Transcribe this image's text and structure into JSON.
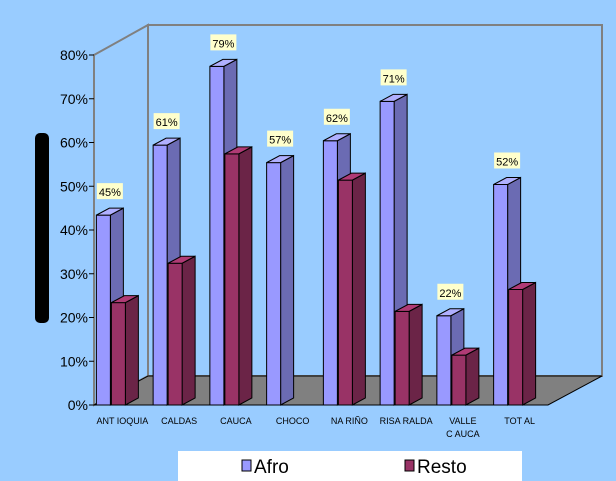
{
  "chart_data": {
    "type": "bar",
    "categories": [
      "ANT IOQUIA",
      "CALDAS",
      "CAUCA",
      "CHOCO",
      "NA RIÑO",
      "RISA RALDA",
      "VALLE C AUCA",
      "TOT AL"
    ],
    "category_lines": [
      [
        "ANT IOQUIA"
      ],
      [
        "CALDAS"
      ],
      [
        "CAUCA"
      ],
      [
        "CHOCO"
      ],
      [
        "NA RIÑO"
      ],
      [
        "RISA RALDA"
      ],
      [
        "VALLE",
        "C AUCA"
      ],
      [
        "TOT AL"
      ]
    ],
    "series": [
      {
        "name": "Afro",
        "values": [
          45,
          61,
          79,
          57,
          62,
          71,
          22,
          52
        ],
        "color": "#9999ff",
        "labels": [
          "45%",
          "61%",
          "79%",
          "57%",
          "62%",
          "71%",
          "22%",
          "52%"
        ]
      },
      {
        "name": "Resto",
        "values": [
          25,
          34,
          59,
          null,
          53,
          23,
          13,
          28
        ],
        "color": "#993366"
      }
    ],
    "yticks": [
      "0%",
      "10%",
      "20%",
      "30%",
      "40%",
      "50%",
      "60%",
      "70%",
      "80%"
    ],
    "ylim": [
      0,
      80
    ],
    "grid": false,
    "legend_position": "bottom",
    "background_color": "#99ccff",
    "label_fill_color": "#ffffcc"
  }
}
